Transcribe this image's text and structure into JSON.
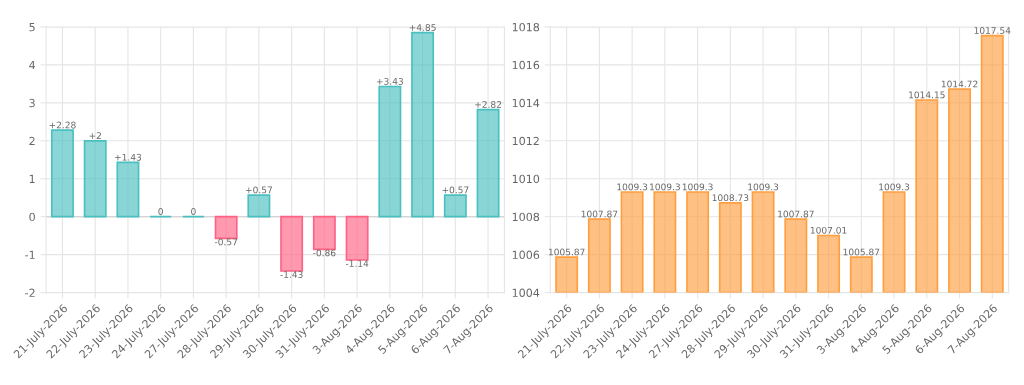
{
  "chart_data": [
    {
      "type": "bar",
      "categories": [
        "21-July-2026",
        "22-July-2026",
        "23-July-2026",
        "24-July-2026",
        "27-July-2026",
        "28-July-2026",
        "29-July-2026",
        "30-July-2026",
        "31-July-2026",
        "3-Aug-2026",
        "4-Aug-2026",
        "5-Aug-2026",
        "6-Aug-2026",
        "7-Aug-2026"
      ],
      "values": [
        2.28,
        2,
        1.43,
        0,
        0,
        -0.57,
        0.57,
        -1.43,
        -0.86,
        -1.14,
        3.43,
        4.85,
        0.57,
        2.82
      ],
      "colors": [
        "#4bc0c0",
        "#4bc0c0",
        "#4bc0c0",
        "#4bc0c0",
        "#4bc0c0",
        "#ff6384",
        "#4bc0c0",
        "#ff6384",
        "#ff6384",
        "#ff6384",
        "#4bc0c0",
        "#4bc0c0",
        "#4bc0c0",
        "#4bc0c0"
      ],
      "value_labels": [
        "+2.28",
        "+2",
        "+1.43",
        "0",
        "0",
        "-0.57",
        "+0.57",
        "-1.43",
        "-0.86",
        "-1.14",
        "+3.43",
        "+4.85",
        "+0.57",
        "+2.82"
      ],
      "ylim": [
        -2,
        5
      ],
      "yticks": [
        -2,
        -1,
        0,
        1,
        2,
        3,
        4,
        5
      ],
      "grid": true
    },
    {
      "type": "bar",
      "categories": [
        "21-July-2026",
        "22-July-2026",
        "23-July-2026",
        "24-July-2026",
        "27-July-2026",
        "28-July-2026",
        "29-July-2026",
        "30-July-2026",
        "31-July-2026",
        "3-Aug-2026",
        "4-Aug-2026",
        "5-Aug-2026",
        "6-Aug-2026",
        "7-Aug-2026"
      ],
      "values": [
        1005.87,
        1007.87,
        1009.3,
        1009.3,
        1009.3,
        1008.73,
        1009.3,
        1007.87,
        1007.01,
        1005.87,
        1009.3,
        1014.15,
        1014.72,
        1017.54
      ],
      "color": "#ff9f40",
      "data_labels": true,
      "ylim": [
        1004,
        1018
      ],
      "yticks": [
        1004,
        1006,
        1008,
        1010,
        1012,
        1014,
        1016,
        1018
      ],
      "grid": true
    }
  ]
}
